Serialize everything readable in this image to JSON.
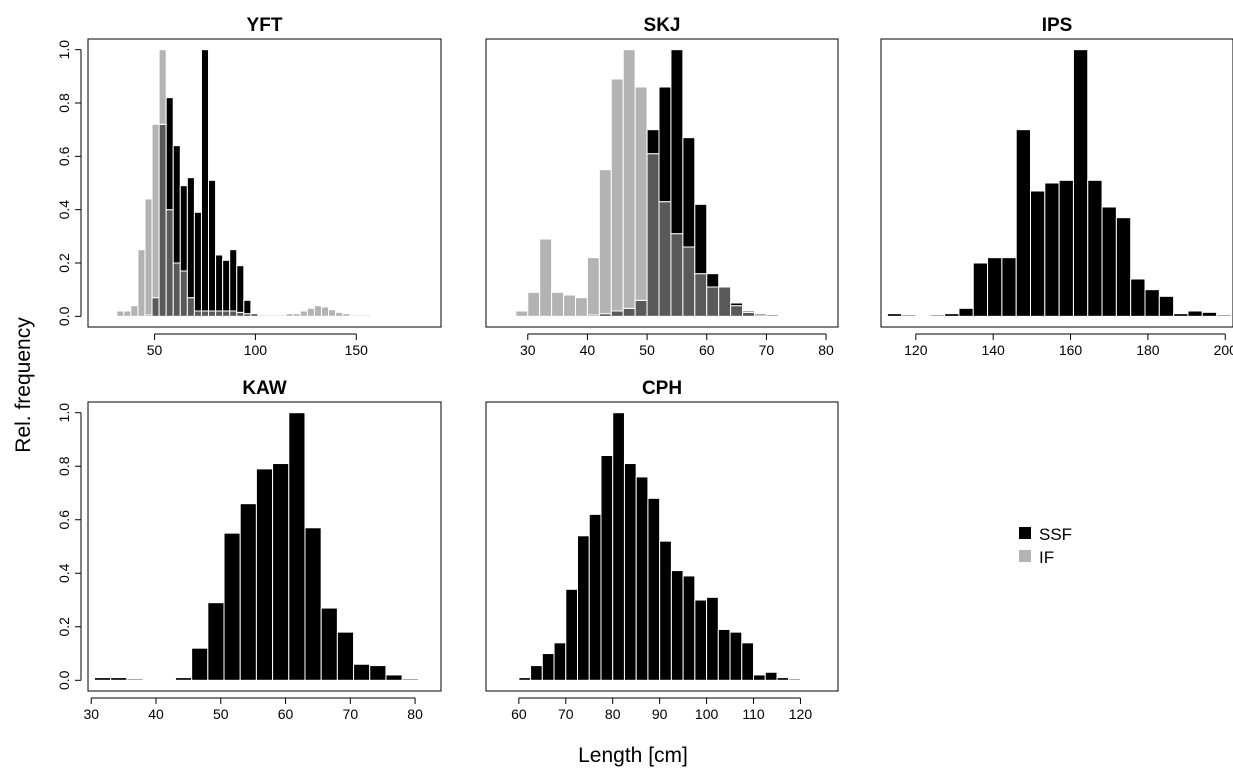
{
  "figure": {
    "ylabel": "Rel. frequency",
    "xlabel": "Length [cm]"
  },
  "legend": {
    "placement": "right",
    "items": [
      {
        "label": "SSF",
        "color": "#000000"
      },
      {
        "label": "IF",
        "color": "#b3b3b3"
      }
    ]
  },
  "colors": {
    "SSF": "#000000",
    "IF": "#b3b3b3",
    "overlap": "#595959",
    "bar_edge": "#ffffff"
  },
  "chart_data": [
    {
      "type": "bar",
      "title": "YFT",
      "xlim": [
        17,
        192
      ],
      "ylim": [
        -0.04,
        1.04
      ],
      "xticks": [
        50,
        100,
        150
      ],
      "yticks": [
        0.0,
        0.2,
        0.4,
        0.6,
        0.8,
        1.0
      ],
      "bin_width": 3.5,
      "series": [
        {
          "name": "SSF",
          "x": [
            40,
            43.5,
            47,
            50.5,
            54,
            57.5,
            61,
            64.5,
            68,
            71.5,
            75,
            78.5,
            82,
            85.5,
            89,
            92.5,
            96,
            99.5
          ],
          "values": [
            0.0,
            0.0,
            0.005,
            0.07,
            0.72,
            0.82,
            0.64,
            0.49,
            0.52,
            0.39,
            1.0,
            0.51,
            0.23,
            0.21,
            0.25,
            0.19,
            0.06,
            0.01
          ]
        },
        {
          "name": "IF",
          "x": [
            33,
            36.5,
            40,
            43.5,
            47,
            50.5,
            54,
            57.5,
            61,
            64.5,
            68,
            71.5,
            75,
            78.5,
            82,
            85.5,
            89,
            92.5,
            96,
            99.5,
            103,
            106.5,
            110,
            113.5,
            117,
            120.5,
            124,
            127.5,
            131,
            134.5,
            138,
            141.5,
            145,
            148.5,
            152,
            155.5
          ],
          "values": [
            0.02,
            0.02,
            0.04,
            0.25,
            0.44,
            0.72,
            1.0,
            0.4,
            0.2,
            0.17,
            0.07,
            0.02,
            0.02,
            0.02,
            0.02,
            0.02,
            0.02,
            0.015,
            0.01,
            0.01,
            0.005,
            0.005,
            0.005,
            0.005,
            0.01,
            0.01,
            0.02,
            0.03,
            0.04,
            0.035,
            0.025,
            0.015,
            0.01,
            0.005,
            0.005,
            0.005
          ]
        }
      ]
    },
    {
      "type": "bar",
      "title": "SKJ",
      "xlim": [
        23,
        82
      ],
      "ylim": [
        -0.04,
        1.04
      ],
      "xticks": [
        30,
        40,
        50,
        60,
        70,
        80
      ],
      "yticks": [],
      "bin_width": 2,
      "series": [
        {
          "name": "SSF",
          "x": [
            41,
            43,
            45,
            47,
            49,
            51,
            53,
            55,
            57,
            59,
            61,
            63,
            65,
            67,
            69,
            71
          ],
          "values": [
            0.005,
            0.01,
            0.02,
            0.03,
            0.06,
            0.7,
            0.86,
            1.0,
            0.67,
            0.42,
            0.16,
            0.11,
            0.05,
            0.02,
            0.01,
            0.005
          ]
        },
        {
          "name": "IF",
          "x": [
            29,
            31,
            33,
            35,
            37,
            39,
            41,
            43,
            45,
            47,
            49,
            51,
            53,
            55,
            57,
            59,
            61,
            63,
            65,
            67,
            69
          ],
          "values": [
            0.02,
            0.09,
            0.29,
            0.09,
            0.08,
            0.07,
            0.22,
            0.55,
            0.89,
            1.0,
            0.86,
            0.61,
            0.43,
            0.31,
            0.26,
            0.16,
            0.11,
            0.11,
            0.04,
            0.015,
            0.005
          ]
        }
      ]
    },
    {
      "type": "bar",
      "title": "IPS",
      "xlim": [
        111,
        202
      ],
      "ylim": [
        -0.04,
        1.04
      ],
      "xticks": [
        120,
        140,
        160,
        180,
        200
      ],
      "yticks": [],
      "bin_width": 3.7,
      "series": [
        {
          "name": "SSF",
          "x": [
            114.5,
            118.2,
            121.9,
            125.6,
            129.3,
            133,
            136.7,
            140.4,
            144.1,
            147.8,
            151.5,
            155.2,
            158.9,
            162.6,
            166.3,
            170,
            173.7,
            177.4,
            181.1,
            184.8,
            188.5,
            192.2,
            195.9,
            199.6
          ],
          "values": [
            0.01,
            0.005,
            0.0,
            0.005,
            0.01,
            0.03,
            0.2,
            0.22,
            0.22,
            0.7,
            0.47,
            0.5,
            0.51,
            1.0,
            0.51,
            0.41,
            0.37,
            0.14,
            0.1,
            0.075,
            0.01,
            0.02,
            0.015,
            0.005
          ]
        }
      ]
    },
    {
      "type": "bar",
      "title": "KAW",
      "xlim": [
        29.5,
        84
      ],
      "ylim": [
        -0.04,
        1.04
      ],
      "xticks": [
        30,
        40,
        50,
        60,
        70,
        80
      ],
      "yticks": [
        0.0,
        0.2,
        0.4,
        0.6,
        0.8,
        1.0
      ],
      "bin_width": 2.5,
      "series": [
        {
          "name": "SSF",
          "x": [
            31.75,
            34.25,
            36.75,
            39.25,
            41.75,
            44.25,
            46.75,
            49.25,
            51.75,
            54.25,
            56.75,
            59.25,
            61.75,
            64.25,
            66.75,
            69.25,
            71.75,
            74.25,
            76.75,
            79.25
          ],
          "values": [
            0.01,
            0.01,
            0.005,
            0.0,
            0.0,
            0.01,
            0.12,
            0.29,
            0.55,
            0.66,
            0.79,
            0.81,
            1.0,
            0.57,
            0.27,
            0.18,
            0.06,
            0.055,
            0.02,
            0.005
          ]
        }
      ]
    },
    {
      "type": "bar",
      "title": "CPH",
      "xlim": [
        53,
        128
      ],
      "ylim": [
        -0.04,
        1.04
      ],
      "xticks": [
        60,
        70,
        80,
        90,
        100,
        110,
        120
      ],
      "yticks": [],
      "bin_width": 2.5,
      "series": [
        {
          "name": "SSF",
          "x": [
            61.25,
            63.75,
            66.25,
            68.75,
            71.25,
            73.75,
            76.25,
            78.75,
            81.25,
            83.75,
            86.25,
            88.75,
            91.25,
            93.75,
            96.25,
            98.75,
            101.25,
            103.75,
            106.25,
            108.75,
            111.25,
            113.75,
            116.25,
            118.75
          ],
          "values": [
            0.01,
            0.055,
            0.1,
            0.14,
            0.34,
            0.54,
            0.62,
            0.84,
            1.0,
            0.81,
            0.76,
            0.68,
            0.52,
            0.41,
            0.39,
            0.3,
            0.31,
            0.19,
            0.18,
            0.14,
            0.02,
            0.03,
            0.01,
            0.005
          ]
        }
      ]
    }
  ]
}
